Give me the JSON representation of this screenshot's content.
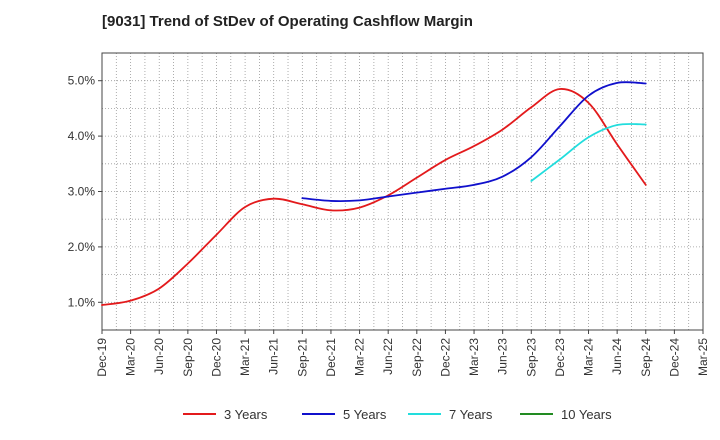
{
  "chart_data": {
    "type": "line",
    "title": "[9031]  Trend of StDev of Operating Cashflow Margin",
    "xlabel": "",
    "ylabel": "",
    "ylim": [
      0.5,
      5.5
    ],
    "yticks": [
      1.0,
      2.0,
      3.0,
      4.0,
      5.0
    ],
    "ytick_labels": [
      "1.0%",
      "2.0%",
      "3.0%",
      "4.0%",
      "5.0%"
    ],
    "categories": [
      "Dec-19",
      "Mar-20",
      "Jun-20",
      "Sep-20",
      "Dec-20",
      "Mar-21",
      "Jun-21",
      "Sep-21",
      "Dec-21",
      "Mar-22",
      "Jun-22",
      "Sep-22",
      "Dec-22",
      "Mar-23",
      "Jun-23",
      "Sep-23",
      "Dec-23",
      "Mar-24",
      "Jun-24",
      "Sep-24",
      "Dec-24",
      "Mar-25"
    ],
    "grid": true,
    "legend_position": "bottom",
    "series": [
      {
        "name": "3 Years",
        "color": "#e31a1c",
        "values": [
          0.95,
          1.03,
          1.25,
          1.7,
          2.22,
          2.72,
          2.87,
          2.77,
          2.66,
          2.71,
          2.93,
          3.25,
          3.57,
          3.82,
          4.12,
          4.52,
          4.85,
          4.6,
          3.85,
          3.12,
          null,
          null
        ]
      },
      {
        "name": "5 Years",
        "color": "#1010cc",
        "values": [
          null,
          null,
          null,
          null,
          null,
          null,
          null,
          2.88,
          2.83,
          2.84,
          2.91,
          2.98,
          3.05,
          3.12,
          3.27,
          3.62,
          4.18,
          4.73,
          4.96,
          4.95,
          null,
          null
        ]
      },
      {
        "name": "7 Years",
        "color": "#22dddd",
        "values": [
          null,
          null,
          null,
          null,
          null,
          null,
          null,
          null,
          null,
          null,
          null,
          null,
          null,
          null,
          null,
          3.19,
          3.58,
          3.98,
          4.2,
          4.21,
          null,
          null
        ]
      },
      {
        "name": "10 Years",
        "color": "#228b22",
        "values": [
          null,
          null,
          null,
          null,
          null,
          null,
          null,
          null,
          null,
          null,
          null,
          null,
          null,
          null,
          null,
          null,
          null,
          null,
          null,
          null,
          null,
          null
        ]
      }
    ]
  }
}
